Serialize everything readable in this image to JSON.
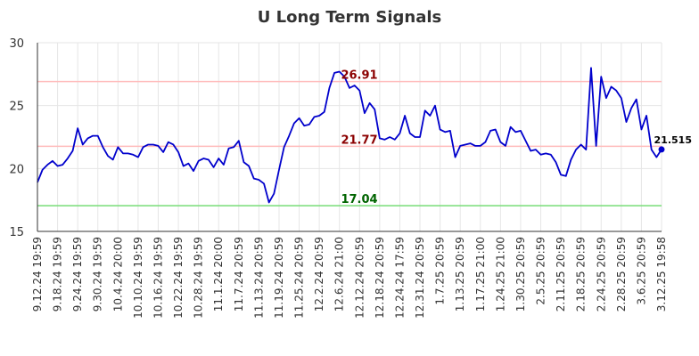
{
  "chart_data": {
    "type": "line",
    "title": "U Long Term Signals",
    "xlabel": "",
    "ylabel": "",
    "ylim": [
      15,
      30
    ],
    "yticks": [
      15,
      20,
      25,
      30
    ],
    "grid": true,
    "xticks": [
      "9.12.24 19:59",
      "9.18.24 19:59",
      "9.24.24 19:59",
      "9.30.24 19:59",
      "10.4.24 20:00",
      "10.10.24 19:59",
      "10.16.24 19:59",
      "10.22.24 19:59",
      "10.28.24 19:59",
      "11.1.24 20:00",
      "11.7.24 20:59",
      "11.13.24 20:59",
      "11.19.24 20:59",
      "11.25.24 20:59",
      "12.2.24 20:59",
      "12.6.24 21:00",
      "12.12.24 20:59",
      "12.18.24 20:59",
      "12.24.24 17:59",
      "12.31.24 20:59",
      "1.7.25 20:59",
      "1.13.25 20:59",
      "1.17.25 21:00",
      "1.24.25 21:00",
      "1.30.25 20:59",
      "2.5.25 20:59",
      "2.11.25 20:59",
      "2.18.25 20:59",
      "2.24.25 20:59",
      "2.28.25 20:59",
      "3.6.25 20:59",
      "3.12.25 19:58"
    ],
    "series": [
      {
        "color": "#0000cc",
        "values": [
          18.9,
          19.9,
          20.3,
          20.6,
          20.2,
          20.3,
          20.8,
          21.4,
          23.2,
          21.9,
          22.4,
          22.6,
          22.6,
          21.7,
          21.0,
          20.7,
          21.7,
          21.2,
          21.2,
          21.1,
          20.9,
          21.7,
          21.9,
          21.9,
          21.8,
          21.3,
          22.1,
          21.9,
          21.3,
          20.2,
          20.4,
          19.8,
          20.6,
          20.8,
          20.7,
          20.1,
          20.8,
          20.3,
          21.6,
          21.7,
          22.2,
          20.5,
          20.2,
          19.2,
          19.1,
          18.8,
          17.3,
          18.0,
          19.9,
          21.7,
          22.6,
          23.6,
          24.0,
          23.4,
          23.5,
          24.1,
          24.2,
          24.5,
          26.4,
          27.6,
          27.7,
          27.3,
          26.4,
          26.6,
          26.2,
          24.4,
          25.2,
          24.7,
          22.4,
          22.3,
          22.5,
          22.3,
          22.8,
          24.2,
          22.8,
          22.5,
          22.5,
          24.6,
          24.2,
          25.0,
          23.1,
          22.9,
          23.0,
          20.9,
          21.8,
          21.9,
          22.0,
          21.8,
          21.8,
          22.1,
          23.0,
          23.1,
          22.1,
          21.8,
          23.3,
          22.9,
          23.0,
          22.2,
          21.4,
          21.5,
          21.1,
          21.2,
          21.1,
          20.5,
          19.5,
          19.4,
          20.7,
          21.5,
          21.9,
          21.5,
          28.0,
          21.8,
          27.3,
          25.6,
          26.5,
          26.2,
          25.6,
          23.7,
          24.8,
          25.5,
          23.1,
          24.2,
          21.5,
          20.9,
          21.515
        ]
      }
    ],
    "reference_lines": [
      {
        "value": 26.91,
        "label": "26.91",
        "line_color": "#ffbbbb",
        "label_color": "#8b0000"
      },
      {
        "value": 21.77,
        "label": "21.77",
        "line_color": "#ffbbbb",
        "label_color": "#8b0000"
      },
      {
        "value": 17.04,
        "label": "17.04",
        "line_color": "#77dd77",
        "label_color": "#006400"
      }
    ],
    "last_value": {
      "value": 21.515,
      "label": "21.515",
      "color": "#0000cc"
    }
  }
}
